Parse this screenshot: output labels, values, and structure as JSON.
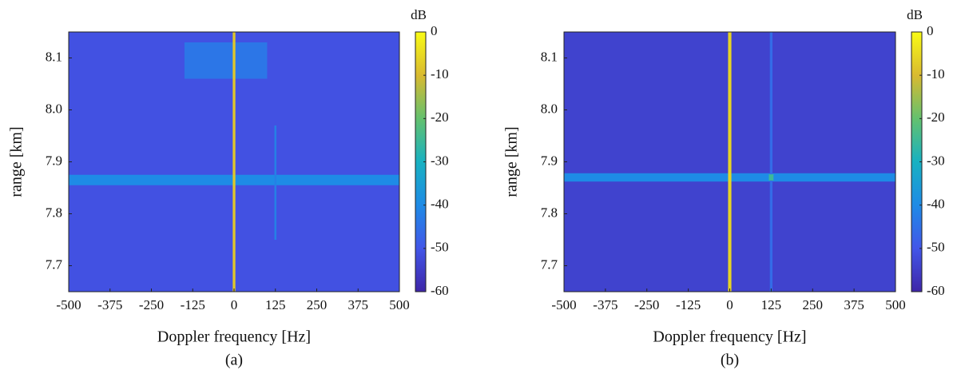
{
  "chart_data": [
    {
      "type": "heatmap",
      "caption": "(a)",
      "xlabel": "Doppler frequency [Hz]",
      "ylabel": "range [km]",
      "colorbar_label": "dB",
      "xlim": [
        -500,
        500
      ],
      "ylim": [
        7.65,
        8.15
      ],
      "xticks": [
        -500,
        -375,
        -250,
        -125,
        0,
        125,
        250,
        375,
        500
      ],
      "yticks": [
        7.7,
        7.8,
        7.9,
        {
          "value": 8,
          "label": "8.0"
        },
        8.1
      ],
      "clim": [
        -60,
        0
      ],
      "cticks": [
        0,
        -10,
        -20,
        -30,
        -40,
        -50,
        -60
      ],
      "colormap": [
        "#3e26a8",
        "#4256e8",
        "#1e8be6",
        "#18b1c1",
        "#64c16e",
        "#d9ba30",
        "#f9fb15"
      ],
      "background": -51,
      "features": [
        {
          "x": [
            -150,
            100
          ],
          "y": [
            8.06,
            8.13
          ],
          "value": -44
        },
        {
          "x": [
            -500,
            500
          ],
          "y": [
            7.855,
            7.875
          ],
          "value": -40
        },
        {
          "x": [
            122,
            128
          ],
          "y": [
            7.75,
            7.97
          ],
          "value": -42
        },
        {
          "x": [
            -4,
            4
          ],
          "y": [
            7.65,
            8.15
          ],
          "value": -8
        }
      ]
    },
    {
      "type": "heatmap",
      "caption": "(b)",
      "xlabel": "Doppler frequency [Hz]",
      "ylabel": "range [km]",
      "colorbar_label": "dB",
      "xlim": [
        -500,
        500
      ],
      "ylim": [
        7.65,
        8.15
      ],
      "xticks": [
        -500,
        -375,
        -250,
        -125,
        0,
        125,
        250,
        375,
        500
      ],
      "yticks": [
        7.7,
        7.8,
        7.9,
        {
          "value": 8,
          "label": "8.0"
        },
        8.1
      ],
      "clim": [
        -60,
        0
      ],
      "cticks": [
        0,
        -10,
        -20,
        -30,
        -40,
        -50,
        -60
      ],
      "colormap": [
        "#3e26a8",
        "#4256e8",
        "#1e8be6",
        "#18b1c1",
        "#64c16e",
        "#d9ba30",
        "#f9fb15"
      ],
      "background": -54,
      "features": [
        {
          "x": [
            -500,
            500
          ],
          "y": [
            7.862,
            7.878
          ],
          "value": -40
        },
        {
          "x": [
            121,
            129
          ],
          "y": [
            7.65,
            8.15
          ],
          "value": -46
        },
        {
          "x": [
            118,
            132
          ],
          "y": [
            7.864,
            7.876
          ],
          "value": -25
        },
        {
          "x": [
            -5,
            5
          ],
          "y": [
            7.65,
            8.15
          ],
          "value": -6
        }
      ]
    }
  ]
}
